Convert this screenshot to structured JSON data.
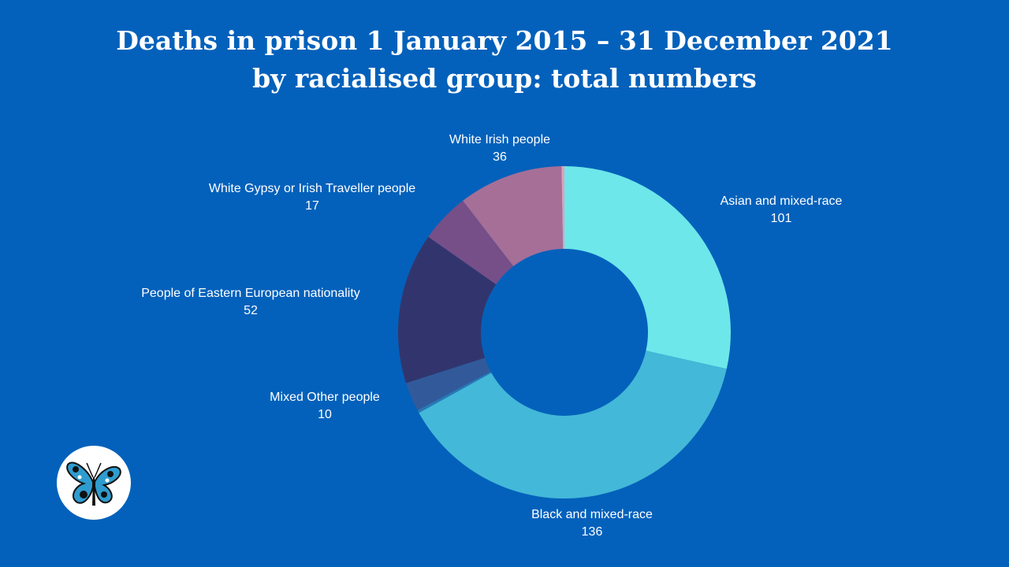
{
  "title_line1": "Deaths in prison 1 January 2015 – 31 December 2021",
  "title_line2": "by racialised group: total numbers",
  "chart_data": {
    "type": "pie",
    "title": "Deaths in prison 1 January 2015 – 31 December 2021 by racialised group: total numbers",
    "donut": true,
    "slices": [
      {
        "label": "Asian and mixed-race",
        "value": 101,
        "color": "#6de7ea"
      },
      {
        "label": "Black and mixed-race",
        "value": 136,
        "color": "#43b8d8"
      },
      {
        "label": "",
        "value": 1,
        "color": "#2a77b5"
      },
      {
        "label": "Mixed Other people",
        "value": 10,
        "color": "#325a9a"
      },
      {
        "label": "People of Eastern European nationality",
        "value": 52,
        "color": "#32356d"
      },
      {
        "label": "White Gypsy or Irish Traveller people",
        "value": 17,
        "color": "#764f88"
      },
      {
        "label": "White Irish people",
        "value": 36,
        "color": "#a56f98"
      },
      {
        "label": "",
        "value": 1,
        "color": "#e0a0b8"
      }
    ]
  },
  "labels": [
    {
      "name": "Asian and mixed-race",
      "value": "101"
    },
    {
      "name": "Black and mixed-race",
      "value": "136"
    },
    {
      "name": "Mixed Other people",
      "value": "10"
    },
    {
      "name": "People of Eastern European nationality",
      "value": "52"
    },
    {
      "name": "White Gypsy or Irish Traveller people",
      "value": "17"
    },
    {
      "name": "White Irish people",
      "value": "36"
    }
  ],
  "logo_icon": "butterfly-logo-icon"
}
